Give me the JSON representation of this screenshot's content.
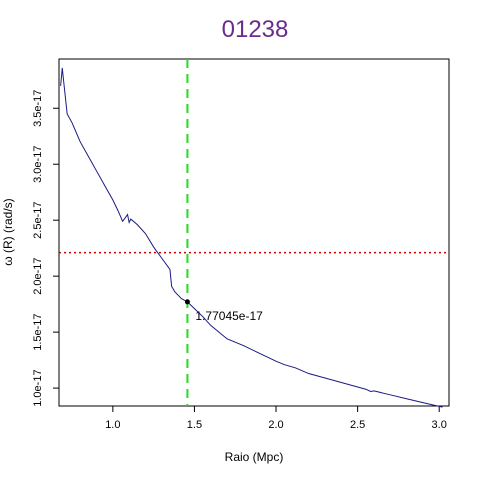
{
  "chart_data": {
    "type": "line",
    "title": "01238",
    "title_color": "#6a2c8c",
    "xlabel": "Raio (Mpc)",
    "ylabel": "ω (R) (rad/s)",
    "xlim": [
      0.67,
      3.06
    ],
    "ylim": [
      8.4e-18,
      3.94e-17
    ],
    "x_ticks": [
      1.0,
      1.5,
      2.0,
      2.5,
      3.0
    ],
    "x_tick_labels": [
      "1.0",
      "1.5",
      "2.0",
      "2.5",
      "3.0"
    ],
    "y_ticks": [
      1e-17,
      1.5e-17,
      2e-17,
      2.5e-17,
      3e-17,
      3.5e-17
    ],
    "y_tick_labels": [
      "1.0e-17",
      "1.5e-17",
      "2.0e-17",
      "2.5e-17",
      "3.0e-17",
      "3.5e-17"
    ],
    "grid": false,
    "series": [
      {
        "color": "#1a1a80",
        "x": [
          0.68,
          0.69,
          0.7,
          0.72,
          0.75,
          0.8,
          0.85,
          0.9,
          0.95,
          1.0,
          1.03,
          1.06,
          1.09,
          1.1,
          1.11,
          1.15,
          1.2,
          1.25,
          1.3,
          1.35,
          1.36,
          1.38,
          1.4,
          1.42,
          1.457,
          1.5,
          1.55,
          1.6,
          1.65,
          1.7,
          1.8,
          1.9,
          2.0,
          2.05,
          2.12,
          2.2,
          2.3,
          2.4,
          2.5,
          2.55,
          2.58,
          2.6,
          2.7,
          2.8,
          2.9,
          3.02
        ],
        "y": [
          3.7e-17,
          3.86e-17,
          3.72e-17,
          3.45e-17,
          3.37e-17,
          3.2e-17,
          3.07e-17,
          2.94e-17,
          2.81e-17,
          2.68e-17,
          2.59e-17,
          2.49e-17,
          2.55e-17,
          2.48e-17,
          2.51e-17,
          2.46e-17,
          2.38e-17,
          2.26e-17,
          2.16e-17,
          2.06e-17,
          1.91e-17,
          1.86e-17,
          1.83e-17,
          1.8e-17,
          1.77045e-17,
          1.71e-17,
          1.64e-17,
          1.56e-17,
          1.5e-17,
          1.44e-17,
          1.38e-17,
          1.31e-17,
          1.24e-17,
          1.21e-17,
          1.18e-17,
          1.13e-17,
          1.09e-17,
          1.05e-17,
          1.01e-17,
          9.9e-18,
          9.7e-18,
          9.75e-18,
          9.4e-18,
          9.05e-18,
          8.7e-18,
          8.3e-18
        ]
      }
    ],
    "vline": {
      "x": 1.457,
      "color": "#22dd22",
      "style": "dashed"
    },
    "hline": {
      "y": 2.21e-17,
      "color": "#cc0000",
      "style": "dotted"
    },
    "marked_point": {
      "x": 1.457,
      "y": 1.77045e-17,
      "label": "1.77045e-17"
    }
  }
}
